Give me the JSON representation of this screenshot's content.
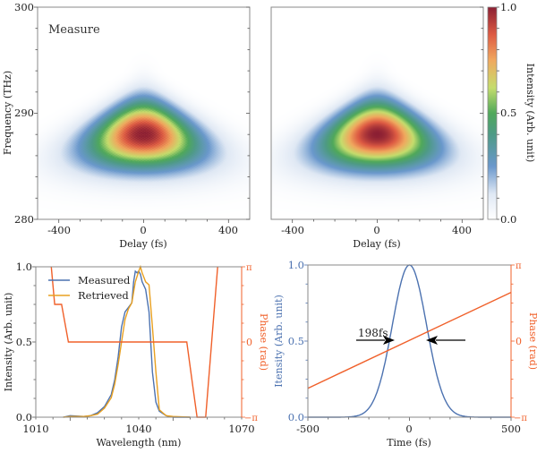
{
  "chart_data": [
    {
      "type": "heatmap",
      "panel": "top-left",
      "annotation": "Measure",
      "xlabel": "Delay (fs)",
      "ylabel": "Frequency (THz)",
      "xlim": [
        -500,
        500
      ],
      "ylim": [
        280,
        300
      ],
      "xticks": [
        "-400",
        "0",
        "400"
      ],
      "yticks": [
        "280",
        "290",
        "300"
      ],
      "peak": {
        "delay": 0,
        "frequency": 288.0,
        "intensity": 1.0
      },
      "spot": {
        "delay_width_fs": 300,
        "freq_width_thz": 4.5,
        "tail_frequency": 286.0
      }
    },
    {
      "type": "heatmap",
      "panel": "top-right",
      "annotation": "",
      "xlabel": "Delay (fs)",
      "xlim": [
        -500,
        500
      ],
      "ylim": [
        280,
        300
      ],
      "xticks": [
        "-400",
        "0",
        "400"
      ],
      "peak": {
        "delay": 0,
        "frequency": 288.0,
        "intensity": 1.0
      },
      "colorbar": {
        "label": "Intensity (Arb. unit)",
        "range": [
          0,
          1
        ],
        "ticks": [
          "0.0",
          "0.5",
          "1.0"
        ]
      }
    },
    {
      "type": "line",
      "panel": "bottom-left",
      "xlabel": "Wavelength (nm)",
      "ylabel": "Intensity (Arb. unit)",
      "y2label": "Phase (rad)",
      "xlim": [
        1010,
        1070
      ],
      "ylim": [
        0,
        1
      ],
      "y2lim": [
        "-π",
        "π"
      ],
      "xticks": [
        "1010",
        "1040",
        "1070"
      ],
      "yticks": [
        "0.0",
        "0.5",
        "1.0"
      ],
      "y2ticks": [
        "−π",
        "0",
        "π"
      ],
      "legend": {
        "placement": "top-left",
        "entries": [
          "Measured",
          "Retrieved"
        ]
      },
      "series": [
        {
          "name": "Measured",
          "color": "#4c72b0",
          "x": [
            1018,
            1020,
            1024,
            1026,
            1028,
            1030,
            1032,
            1033,
            1034,
            1035,
            1036,
            1037,
            1038,
            1038.5,
            1039,
            1039.5,
            1040,
            1040.5,
            1041,
            1042,
            1043,
            1044,
            1045,
            1046,
            1048,
            1050,
            1055
          ],
          "y": [
            0.0,
            0.01,
            0.005,
            0.01,
            0.03,
            0.07,
            0.15,
            0.25,
            0.4,
            0.6,
            0.7,
            0.73,
            0.76,
            0.9,
            0.97,
            0.96,
            0.97,
            0.95,
            0.9,
            0.85,
            0.7,
            0.3,
            0.1,
            0.04,
            0.01,
            0.0,
            0.0
          ]
        },
        {
          "name": "Retrieved",
          "color": "#e8a020",
          "x": [
            1018,
            1020,
            1024,
            1026,
            1028,
            1030,
            1032,
            1033,
            1034,
            1035,
            1036,
            1037,
            1038,
            1039,
            1040,
            1040.5,
            1041,
            1042,
            1043,
            1044,
            1045,
            1046,
            1047,
            1048,
            1050,
            1055
          ],
          "y": [
            0.0,
            0.005,
            0.005,
            0.01,
            0.02,
            0.06,
            0.13,
            0.22,
            0.35,
            0.5,
            0.65,
            0.72,
            0.76,
            0.9,
            0.97,
            1.0,
            0.96,
            0.9,
            0.88,
            0.6,
            0.3,
            0.05,
            0.03,
            0.01,
            0.005,
            0.0
          ]
        },
        {
          "name": "Phase",
          "color": "#f0602a",
          "axis": "right",
          "units": "rad/π",
          "x": [
            1014.5,
            1015.5,
            1017.5,
            1019.5,
            1030,
            1040,
            1054,
            1055.5,
            1057,
            1059.5,
            1063
          ],
          "y": [
            1.0,
            0.5,
            0.5,
            0.0,
            0.0,
            0.0,
            0.0,
            -0.5,
            -1.0,
            -1.0,
            1.0
          ]
        }
      ]
    },
    {
      "type": "line",
      "panel": "bottom-right",
      "xlabel": "Time (fs)",
      "ylabel": "Itensity (Arb. unit)",
      "y2label": "Phase (rad)",
      "xlim": [
        -500,
        500
      ],
      "ylim": [
        0,
        1
      ],
      "y2lim": [
        "-π",
        "π"
      ],
      "xticks": [
        "-500",
        "0",
        "500"
      ],
      "yticks": [
        "0.0",
        "0.5",
        "1.0"
      ],
      "y2ticks": [
        "−π",
        "0",
        "π"
      ],
      "annotation": {
        "text": "198fs",
        "fwhm_fs": 198
      },
      "series": [
        {
          "name": "Intensity",
          "color": "#4c72b0",
          "model": "gaussian",
          "center": 0,
          "fwhm": 198,
          "peak": 1.0
        },
        {
          "name": "Phase",
          "color": "#f0602a",
          "axis": "right",
          "units": "rad/π",
          "x": [
            -500,
            500
          ],
          "y": [
            -0.62,
            0.64
          ]
        }
      ]
    }
  ]
}
